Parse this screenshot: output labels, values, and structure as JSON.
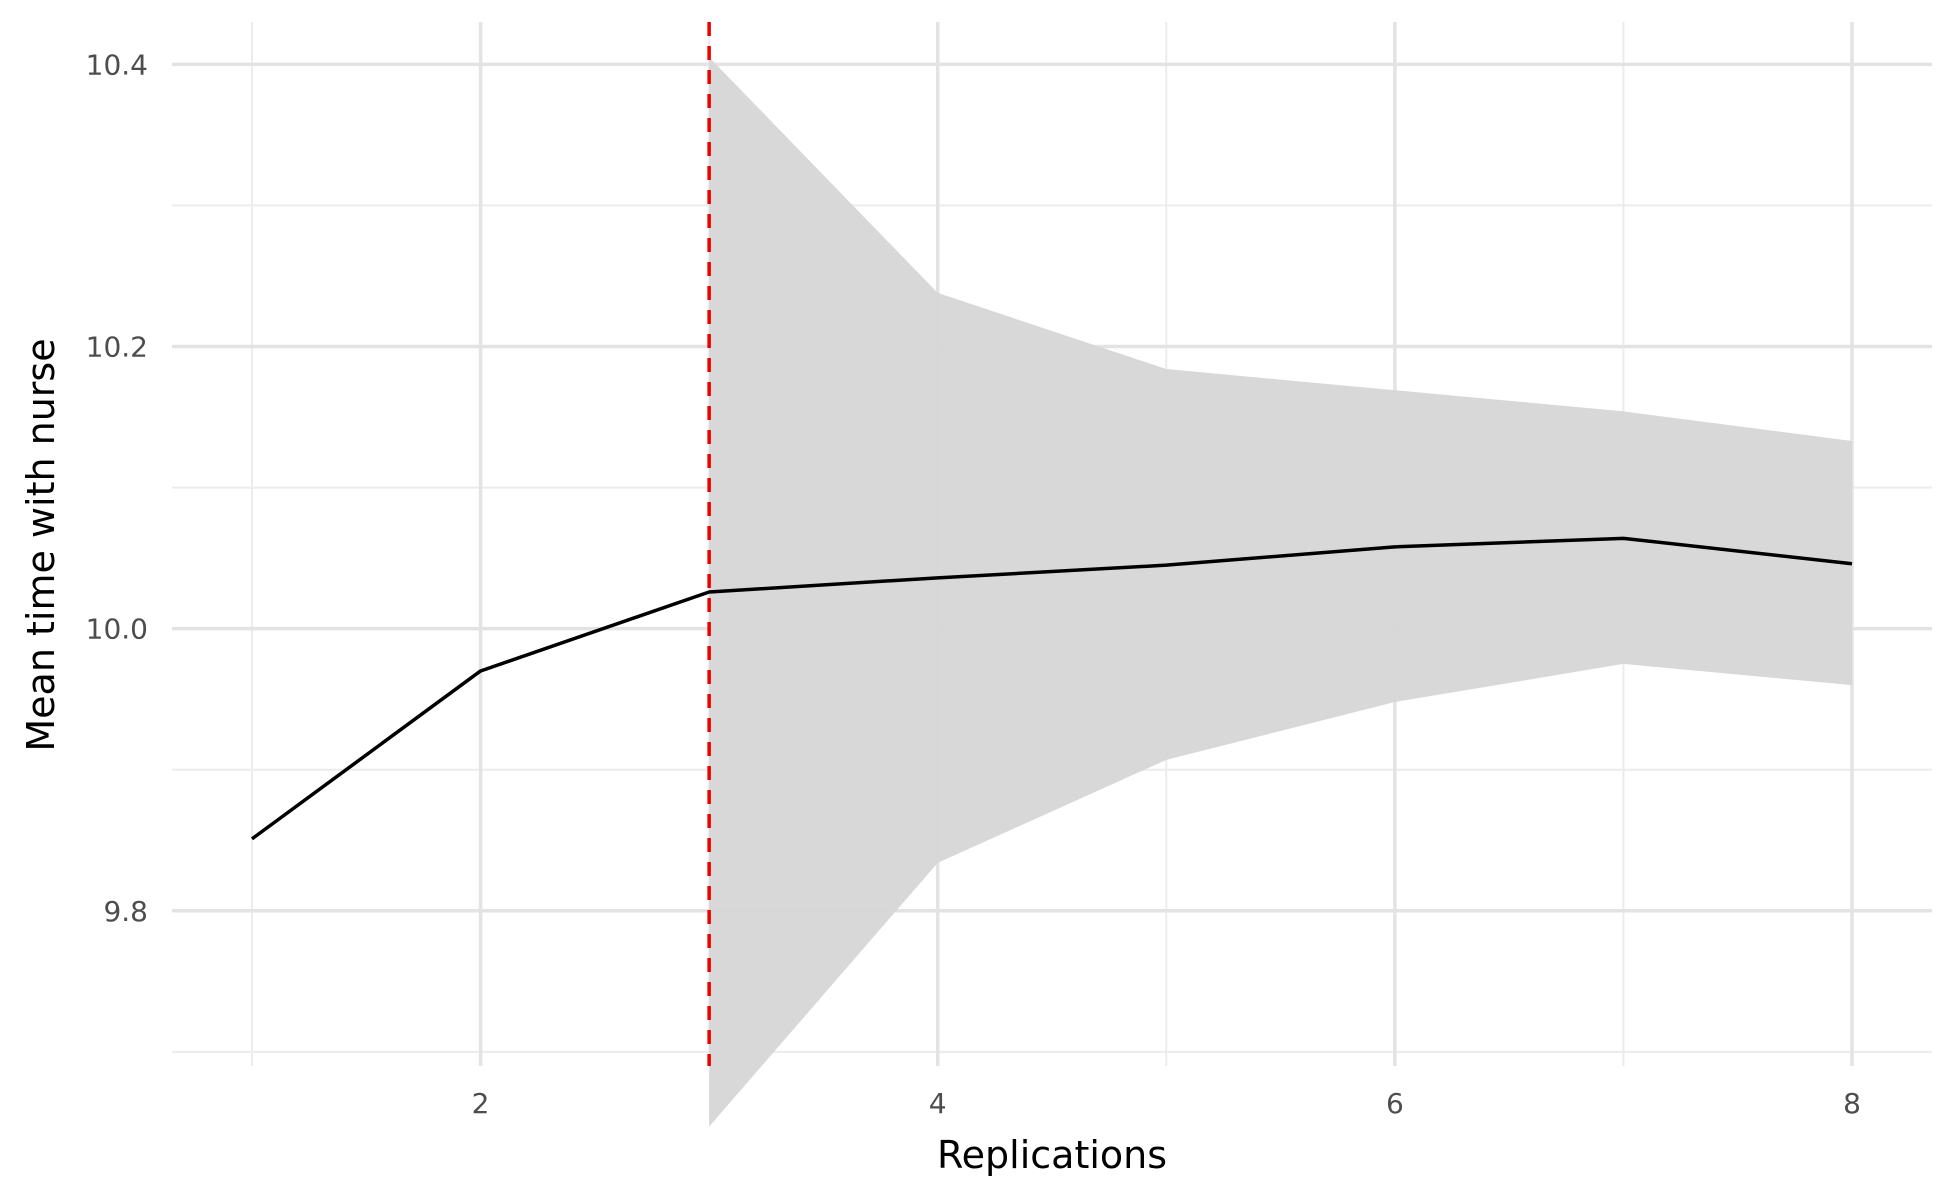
{
  "chart_data": {
    "type": "line",
    "title": "",
    "xlabel": "Replications",
    "ylabel": "Mean time with nurse",
    "xlim": [
      0.65,
      8.35
    ],
    "ylim": [
      9.69,
      10.43
    ],
    "x_ticks": [
      {
        "value": 2,
        "label": "2"
      },
      {
        "value": 4,
        "label": "4"
      },
      {
        "value": 6,
        "label": "6"
      },
      {
        "value": 8,
        "label": "8"
      }
    ],
    "x_minor_ticks": [
      1,
      3,
      5,
      7
    ],
    "y_ticks": [
      {
        "value": 9.8,
        "label": "9.8"
      },
      {
        "value": 10.0,
        "label": "10.0"
      },
      {
        "value": 10.2,
        "label": "10.2"
      },
      {
        "value": 10.4,
        "label": "10.4"
      }
    ],
    "y_minor_ticks": [
      9.7,
      9.9,
      10.1,
      10.3
    ],
    "grid": true,
    "legend": "none",
    "series": [
      {
        "x": [
          1,
          2,
          3,
          4,
          5,
          6,
          7,
          8
        ],
        "y": [
          9.851,
          9.97,
          10.026,
          10.036,
          10.045,
          10.058,
          10.064,
          10.046
        ],
        "color": "#000000"
      }
    ],
    "confidence_band": {
      "x": [
        3,
        4,
        5,
        6,
        7,
        8
      ],
      "lower": [
        9.647,
        9.834,
        9.907,
        9.948,
        9.975,
        9.96
      ],
      "upper": [
        10.405,
        10.238,
        10.184,
        10.169,
        10.154,
        10.133
      ],
      "color": "#d6d6d6"
    },
    "reference_line": {
      "orientation": "vertical",
      "x": 3,
      "style": "dashed",
      "color": "#ee0000"
    }
  }
}
